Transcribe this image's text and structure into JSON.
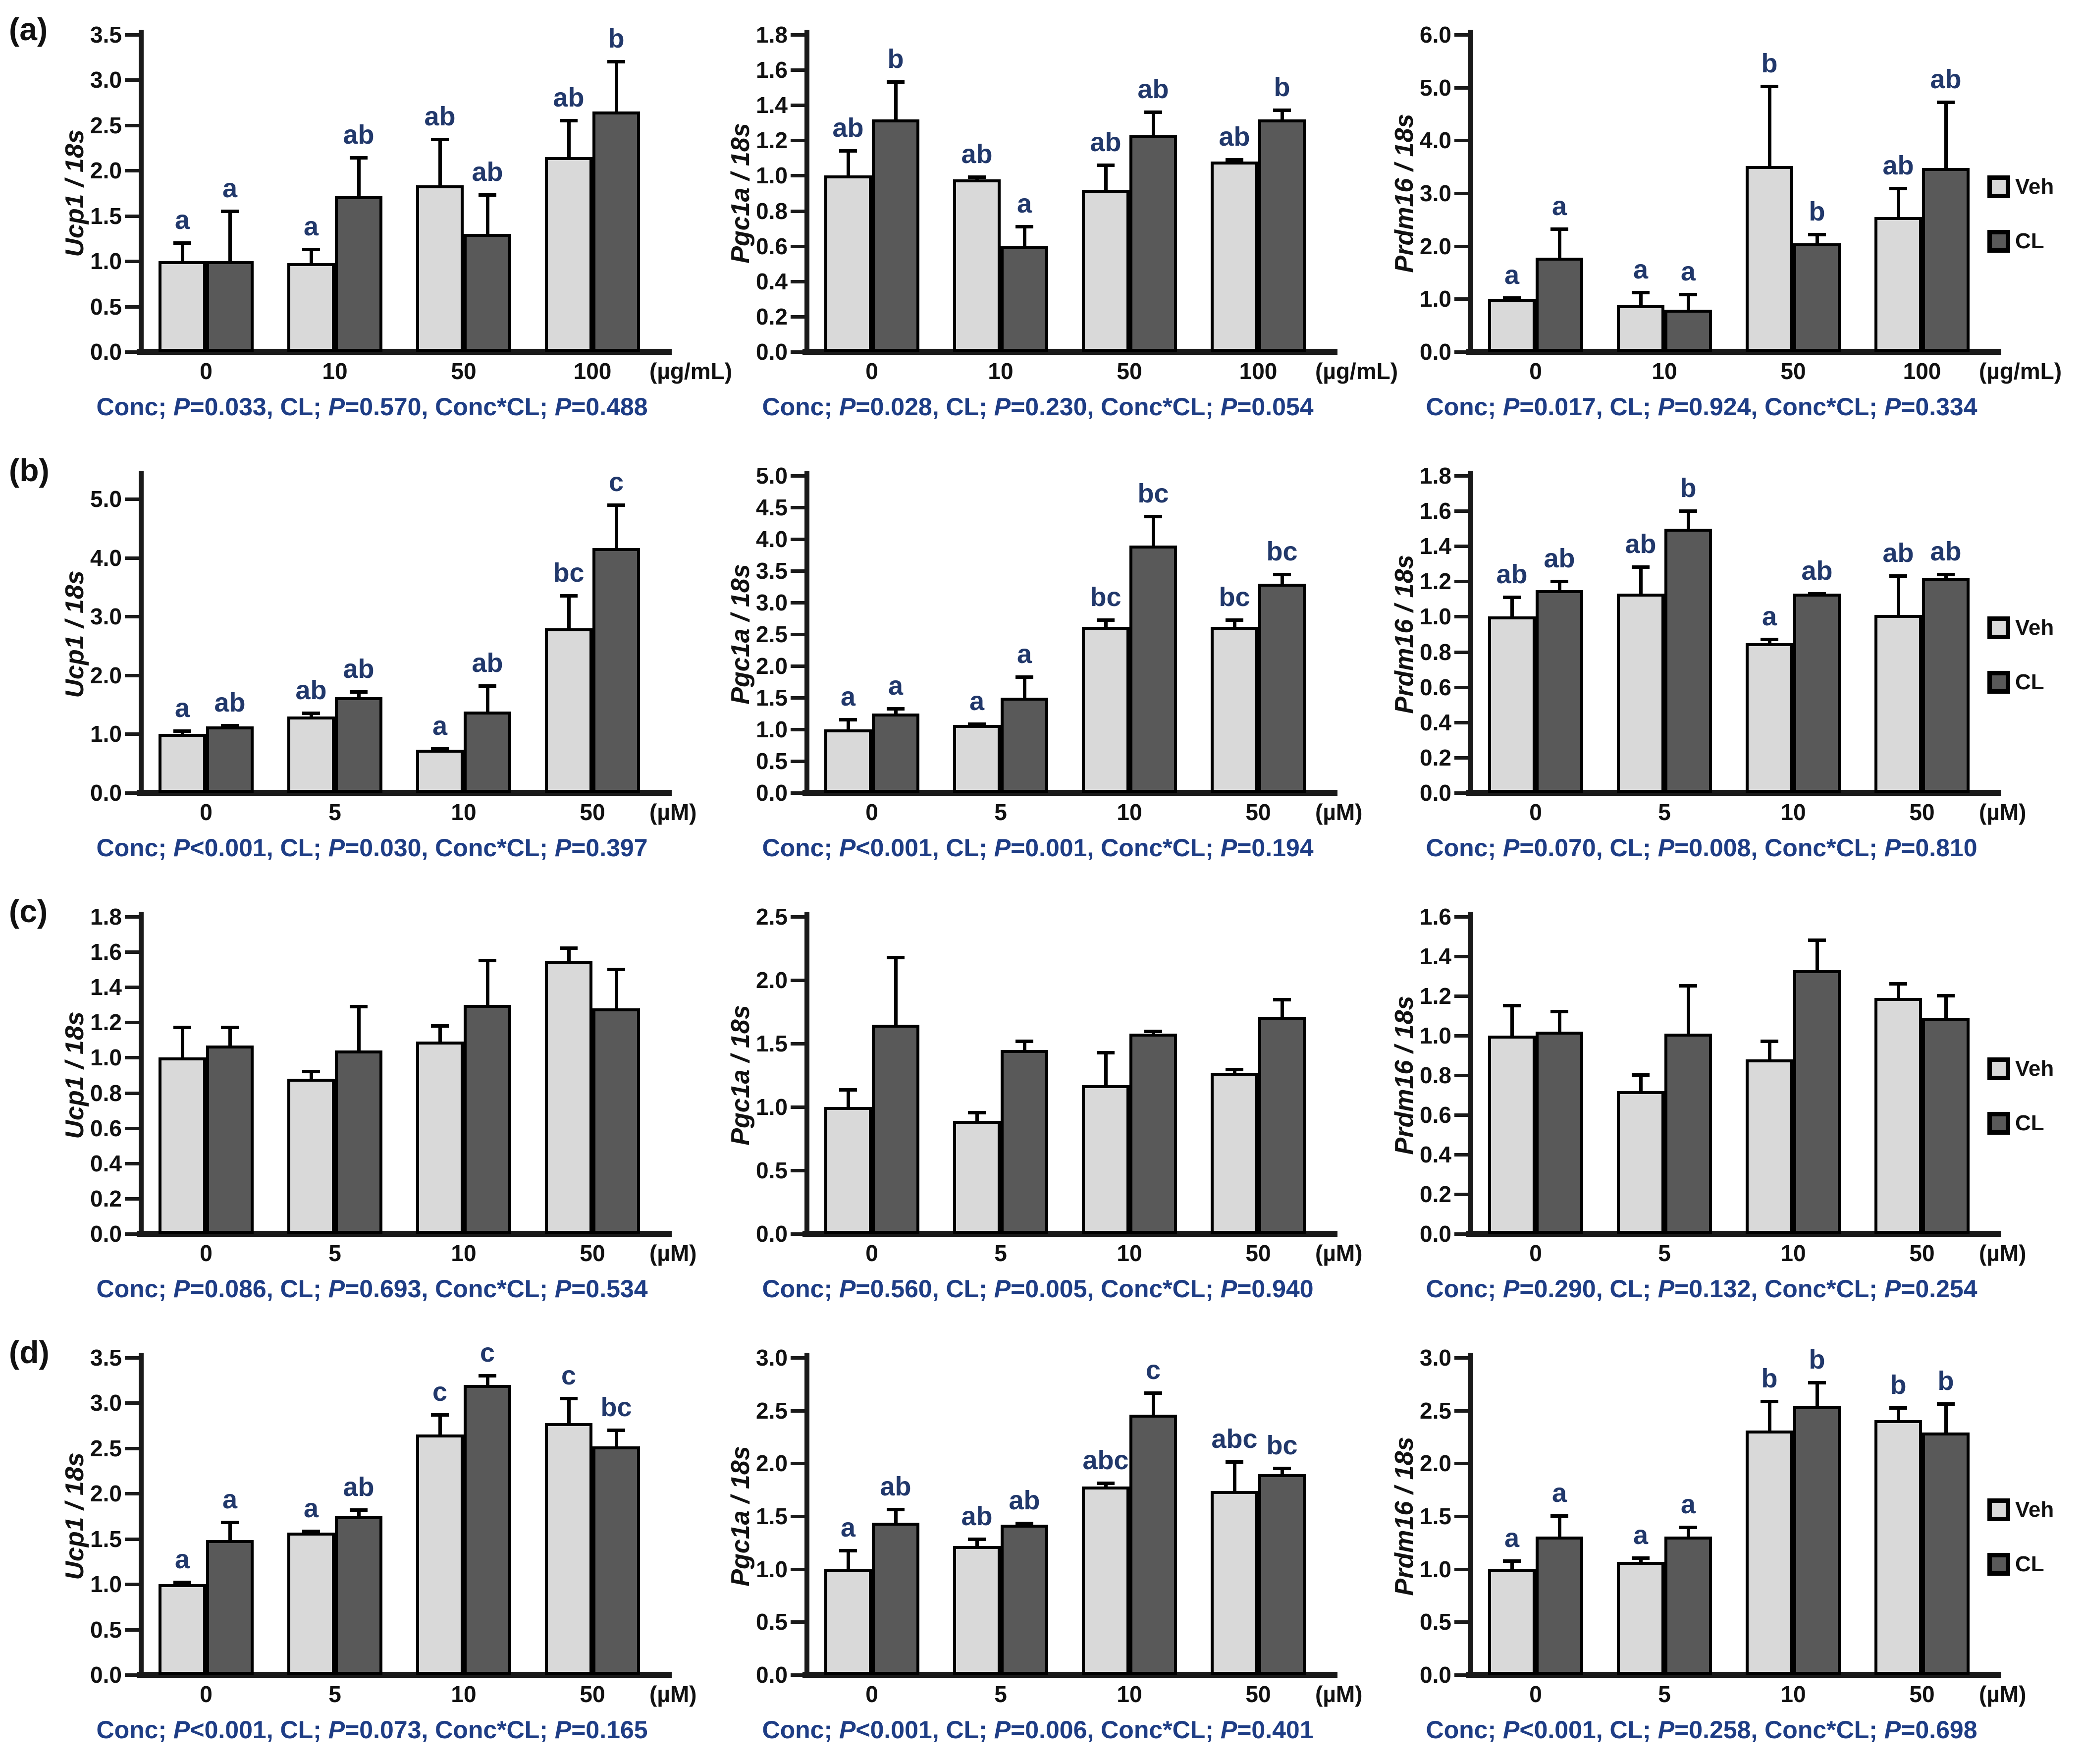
{
  "figure": {
    "panels": [
      "(a)",
      "(b)",
      "(c)",
      "(d)"
    ],
    "colors": {
      "veh_fill": "#d9d9d9",
      "cl_fill": "#595959",
      "bar_border": "#000000",
      "letter_color": "#21386b",
      "stats_color": "#1e3d85"
    },
    "legend": {
      "items": [
        {
          "label": "Veh",
          "fill": "#d9d9d9"
        },
        {
          "label": "CL",
          "fill": "#595959"
        }
      ]
    },
    "stats_template": {
      "conc_label": "Conc; ",
      "cl_label": ", CL; ",
      "inter_label": ", Conc*CL; ",
      "p": "P"
    }
  },
  "chart_data": [
    {
      "type": "bar",
      "panel": "(a)",
      "row": 0,
      "col": 0,
      "ylabel": "Ucp1 / 18s",
      "categories": [
        "0",
        "10",
        "50",
        "100"
      ],
      "unit": "(µg/mL)",
      "ylim": 3.5,
      "tick_max": 3.5,
      "ystep": 0.5,
      "series": [
        {
          "name": "Veh",
          "values": [
            1.0,
            0.98,
            1.84,
            2.15
          ],
          "errors": [
            0.22,
            0.17,
            0.52,
            0.42
          ],
          "letters": [
            "a",
            "a",
            "ab",
            "ab"
          ]
        },
        {
          "name": "CL",
          "values": [
            1.0,
            1.72,
            1.3,
            2.65
          ],
          "errors": [
            0.57,
            0.44,
            0.45,
            0.57
          ],
          "letters": [
            "a",
            "ab",
            "ab",
            "b"
          ]
        }
      ],
      "stats": {
        "conc": "=0.033",
        "cl": "=0.570",
        "inter": "=0.488"
      }
    },
    {
      "type": "bar",
      "panel": "(a)",
      "row": 0,
      "col": 1,
      "ylabel": "Pgc1a / 18s",
      "categories": [
        "0",
        "10",
        "50",
        "100"
      ],
      "unit": "(µg/mL)",
      "ylim": 1.8,
      "tick_max": 1.8,
      "ystep": 0.2,
      "series": [
        {
          "name": "Veh",
          "values": [
            1.0,
            0.98,
            0.92,
            1.08
          ],
          "errors": [
            0.15,
            0.02,
            0.15,
            0.02
          ],
          "letters": [
            "ab",
            "ab",
            "ab",
            "ab"
          ]
        },
        {
          "name": "CL",
          "values": [
            1.32,
            0.6,
            1.23,
            1.32
          ],
          "errors": [
            0.22,
            0.12,
            0.14,
            0.06
          ],
          "letters": [
            "b",
            "a",
            "ab",
            "b"
          ]
        }
      ],
      "stats": {
        "conc": "=0.028",
        "cl": "=0.230",
        "inter": "=0.054"
      }
    },
    {
      "type": "bar",
      "panel": "(a)",
      "row": 0,
      "col": 2,
      "ylabel": "Prdm16 / 18s",
      "categories": [
        "0",
        "10",
        "50",
        "100"
      ],
      "unit": "(µg/mL)",
      "ylim": 6.0,
      "tick_max": 6.0,
      "ystep": 1.0,
      "series": [
        {
          "name": "Veh",
          "values": [
            1.0,
            0.88,
            3.52,
            2.55
          ],
          "errors": [
            0.05,
            0.27,
            1.53,
            0.57
          ],
          "letters": [
            "a",
            "a",
            "b",
            "ab"
          ]
        },
        {
          "name": "CL",
          "values": [
            1.78,
            0.8,
            2.05,
            3.48
          ],
          "errors": [
            0.57,
            0.32,
            0.2,
            1.27
          ],
          "letters": [
            "a",
            "a",
            "b",
            "ab"
          ]
        }
      ],
      "stats": {
        "conc": "=0.017",
        "cl": "=0.924",
        "inter": "=0.334"
      }
    },
    {
      "type": "bar",
      "panel": "(b)",
      "row": 1,
      "col": 0,
      "ylabel": "Ucp1 / 18s",
      "categories": [
        "0",
        "5",
        "10",
        "50"
      ],
      "unit": "(µM)",
      "ylim": 5.4,
      "tick_max": 5.0,
      "ystep": 1.0,
      "series": [
        {
          "name": "Veh",
          "values": [
            1.0,
            1.3,
            0.73,
            2.8
          ],
          "errors": [
            0.08,
            0.08,
            0.05,
            0.58
          ],
          "letters": [
            "a",
            "ab",
            "a",
            "bc"
          ]
        },
        {
          "name": "CL",
          "values": [
            1.13,
            1.63,
            1.38,
            4.17
          ],
          "errors": [
            0.04,
            0.12,
            0.47,
            0.76
          ],
          "letters": [
            "ab",
            "ab",
            "ab",
            "c"
          ]
        }
      ],
      "stats": {
        "conc": "<0.001",
        "cl": "=0.030",
        "inter": "=0.397"
      }
    },
    {
      "type": "bar",
      "panel": "(b)",
      "row": 1,
      "col": 1,
      "ylabel": "Pgc1a / 18s",
      "categories": [
        "0",
        "5",
        "10",
        "50"
      ],
      "unit": "(µM)",
      "ylim": 5.0,
      "tick_max": 5.0,
      "ystep": 0.5,
      "series": [
        {
          "name": "Veh",
          "values": [
            1.0,
            1.07,
            2.62,
            2.62
          ],
          "errors": [
            0.18,
            0.04,
            0.13,
            0.13
          ],
          "letters": [
            "a",
            "a",
            "bc",
            "bc"
          ]
        },
        {
          "name": "CL",
          "values": [
            1.25,
            1.5,
            3.9,
            3.3
          ],
          "errors": [
            0.1,
            0.35,
            0.48,
            0.17
          ],
          "letters": [
            "a",
            "a",
            "bc",
            "bc"
          ]
        }
      ],
      "stats": {
        "conc": "<0.001",
        "cl": "=0.001",
        "inter": "=0.194"
      }
    },
    {
      "type": "bar",
      "panel": "(b)",
      "row": 1,
      "col": 2,
      "ylabel": "Prdm16 / 18s",
      "categories": [
        "0",
        "5",
        "10",
        "50"
      ],
      "unit": "(µM)",
      "ylim": 1.8,
      "tick_max": 1.8,
      "ystep": 0.2,
      "series": [
        {
          "name": "Veh",
          "values": [
            1.0,
            1.13,
            0.85,
            1.01
          ],
          "errors": [
            0.12,
            0.16,
            0.03,
            0.23
          ],
          "letters": [
            "ab",
            "ab",
            "a",
            "ab"
          ]
        },
        {
          "name": "CL",
          "values": [
            1.15,
            1.5,
            1.13,
            1.22
          ],
          "errors": [
            0.06,
            0.11,
            0.01,
            0.03
          ],
          "letters": [
            "ab",
            "b",
            "ab",
            "ab"
          ]
        }
      ],
      "stats": {
        "conc": "=0.070",
        "cl": "=0.008",
        "inter": "=0.810"
      }
    },
    {
      "type": "bar",
      "panel": "(c)",
      "row": 2,
      "col": 0,
      "ylabel": "Ucp1 / 18s",
      "categories": [
        "0",
        "5",
        "10",
        "50"
      ],
      "unit": "(µM)",
      "ylim": 1.8,
      "tick_max": 1.8,
      "ystep": 0.2,
      "series": [
        {
          "name": "Veh",
          "values": [
            1.0,
            0.88,
            1.09,
            1.55
          ],
          "errors": [
            0.18,
            0.05,
            0.1,
            0.08
          ],
          "letters": [
            "",
            "",
            "",
            ""
          ]
        },
        {
          "name": "CL",
          "values": [
            1.07,
            1.04,
            1.3,
            1.28
          ],
          "errors": [
            0.11,
            0.26,
            0.26,
            0.23
          ],
          "letters": [
            "",
            "",
            "",
            ""
          ]
        }
      ],
      "stats": {
        "conc": "=0.086",
        "cl": "=0.693",
        "inter": "=0.534"
      }
    },
    {
      "type": "bar",
      "panel": "(c)",
      "row": 2,
      "col": 1,
      "ylabel": "Pgc1a / 18s",
      "categories": [
        "0",
        "5",
        "10",
        "50"
      ],
      "unit": "(µM)",
      "ylim": 2.5,
      "tick_max": 2.5,
      "ystep": 0.5,
      "series": [
        {
          "name": "Veh",
          "values": [
            1.0,
            0.89,
            1.17,
            1.27
          ],
          "errors": [
            0.15,
            0.08,
            0.27,
            0.04
          ],
          "letters": [
            "",
            "",
            "",
            ""
          ]
        },
        {
          "name": "CL",
          "values": [
            1.65,
            1.45,
            1.58,
            1.71
          ],
          "errors": [
            0.54,
            0.08,
            0.03,
            0.15
          ],
          "letters": [
            "",
            "",
            "",
            ""
          ]
        }
      ],
      "stats": {
        "conc": "=0.560",
        "cl": "=0.005",
        "inter": "=0.940"
      }
    },
    {
      "type": "bar",
      "panel": "(c)",
      "row": 2,
      "col": 2,
      "ylabel": "Prdm16 / 18s",
      "categories": [
        "0",
        "5",
        "10",
        "50"
      ],
      "unit": "(µM)",
      "ylim": 1.6,
      "tick_max": 1.6,
      "ystep": 0.2,
      "series": [
        {
          "name": "Veh",
          "values": [
            1.0,
            0.72,
            0.88,
            1.19
          ],
          "errors": [
            0.16,
            0.09,
            0.1,
            0.08
          ],
          "letters": [
            "",
            "",
            "",
            ""
          ]
        },
        {
          "name": "CL",
          "values": [
            1.02,
            1.01,
            1.33,
            1.09
          ],
          "errors": [
            0.11,
            0.25,
            0.16,
            0.12
          ],
          "letters": [
            "",
            "",
            "",
            ""
          ]
        }
      ],
      "stats": {
        "conc": "=0.290",
        "cl": "=0.132",
        "inter": "=0.254"
      }
    },
    {
      "type": "bar",
      "panel": "(d)",
      "row": 3,
      "col": 0,
      "ylabel": "Ucp1 / 18s",
      "categories": [
        "0",
        "5",
        "10",
        "50"
      ],
      "unit": "(µM)",
      "ylim": 3.5,
      "tick_max": 3.5,
      "ystep": 0.5,
      "series": [
        {
          "name": "Veh",
          "values": [
            1.0,
            1.57,
            2.65,
            2.78
          ],
          "errors": [
            0.04,
            0.03,
            0.24,
            0.29
          ],
          "letters": [
            "a",
            "a",
            "c",
            "c"
          ]
        },
        {
          "name": "CL",
          "values": [
            1.49,
            1.75,
            3.2,
            2.52
          ],
          "errors": [
            0.21,
            0.09,
            0.12,
            0.2
          ],
          "letters": [
            "a",
            "ab",
            "c",
            "bc"
          ]
        }
      ],
      "stats": {
        "conc": "<0.001",
        "cl": "=0.073",
        "inter": "=0.165"
      }
    },
    {
      "type": "bar",
      "panel": "(d)",
      "row": 3,
      "col": 1,
      "ylabel": "Pgc1a / 18s",
      "categories": [
        "0",
        "5",
        "10",
        "50"
      ],
      "unit": "(µM)",
      "ylim": 3.0,
      "tick_max": 3.0,
      "ystep": 0.5,
      "series": [
        {
          "name": "Veh",
          "values": [
            1.0,
            1.22,
            1.78,
            1.74
          ],
          "errors": [
            0.19,
            0.08,
            0.05,
            0.29
          ],
          "letters": [
            "a",
            "ab",
            "abc",
            "abc"
          ]
        },
        {
          "name": "CL",
          "values": [
            1.44,
            1.42,
            2.46,
            1.9
          ],
          "errors": [
            0.14,
            0.03,
            0.22,
            0.07
          ],
          "letters": [
            "ab",
            "ab",
            "c",
            "bc"
          ]
        }
      ],
      "stats": {
        "conc": "<0.001",
        "cl": "=0.006",
        "inter": "=0.401"
      }
    },
    {
      "type": "bar",
      "panel": "(d)",
      "row": 3,
      "col": 2,
      "ylabel": "Prdm16 / 18s",
      "categories": [
        "0",
        "5",
        "10",
        "50"
      ],
      "unit": "(µM)",
      "ylim": 3.0,
      "tick_max": 3.0,
      "ystep": 0.5,
      "series": [
        {
          "name": "Veh",
          "values": [
            1.0,
            1.07,
            2.31,
            2.41
          ],
          "errors": [
            0.09,
            0.05,
            0.29,
            0.13
          ],
          "letters": [
            "a",
            "a",
            "b",
            "b"
          ]
        },
        {
          "name": "CL",
          "values": [
            1.31,
            1.31,
            2.54,
            2.29
          ],
          "errors": [
            0.21,
            0.1,
            0.24,
            0.29
          ],
          "letters": [
            "a",
            "a",
            "b",
            "b"
          ]
        }
      ],
      "stats": {
        "conc": "<0.001",
        "cl": "=0.258",
        "inter": "=0.698"
      }
    }
  ]
}
